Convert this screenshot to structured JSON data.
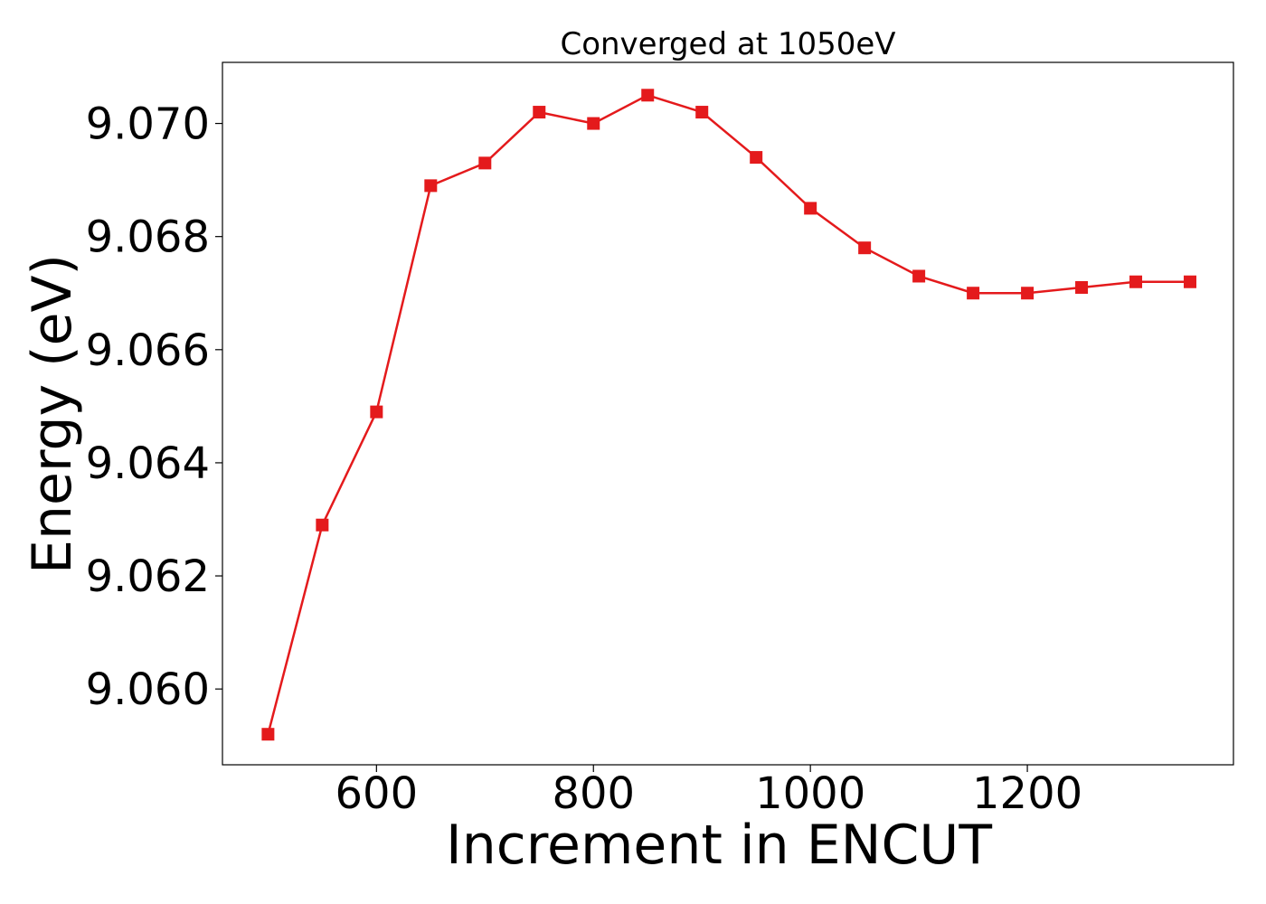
{
  "chart_data": {
    "type": "line",
    "title": "Converged at 1050eV",
    "xlabel": "Increment in ENCUT",
    "ylabel": "Energy (eV)",
    "xlim": [
      458,
      1390
    ],
    "ylim": [
      9.05866,
      9.07108
    ],
    "xticks": [
      600,
      800,
      1000,
      1200
    ],
    "xtick_labels": [
      "600",
      "800",
      "1000",
      "1200"
    ],
    "yticks": [
      9.06,
      9.062,
      9.064,
      9.066,
      9.068,
      9.07
    ],
    "ytick_labels": [
      "9.060",
      "9.062",
      "9.064",
      "9.066",
      "9.068",
      "9.070"
    ],
    "grid": false,
    "legend": "none",
    "series": [
      {
        "color": "#e41a1c",
        "marker": "square",
        "x": [
          500,
          550,
          600,
          650,
          700,
          750,
          800,
          850,
          900,
          950,
          1000,
          1050,
          1100,
          1150,
          1200,
          1250,
          1300,
          1350
        ],
        "y": [
          9.0592,
          9.0629,
          9.0649,
          9.0689,
          9.0693,
          9.0702,
          9.07,
          9.0705,
          9.0702,
          9.0694,
          9.0685,
          9.0678,
          9.0673,
          9.067,
          9.067,
          9.0671,
          9.0672,
          9.0672
        ]
      }
    ]
  }
}
